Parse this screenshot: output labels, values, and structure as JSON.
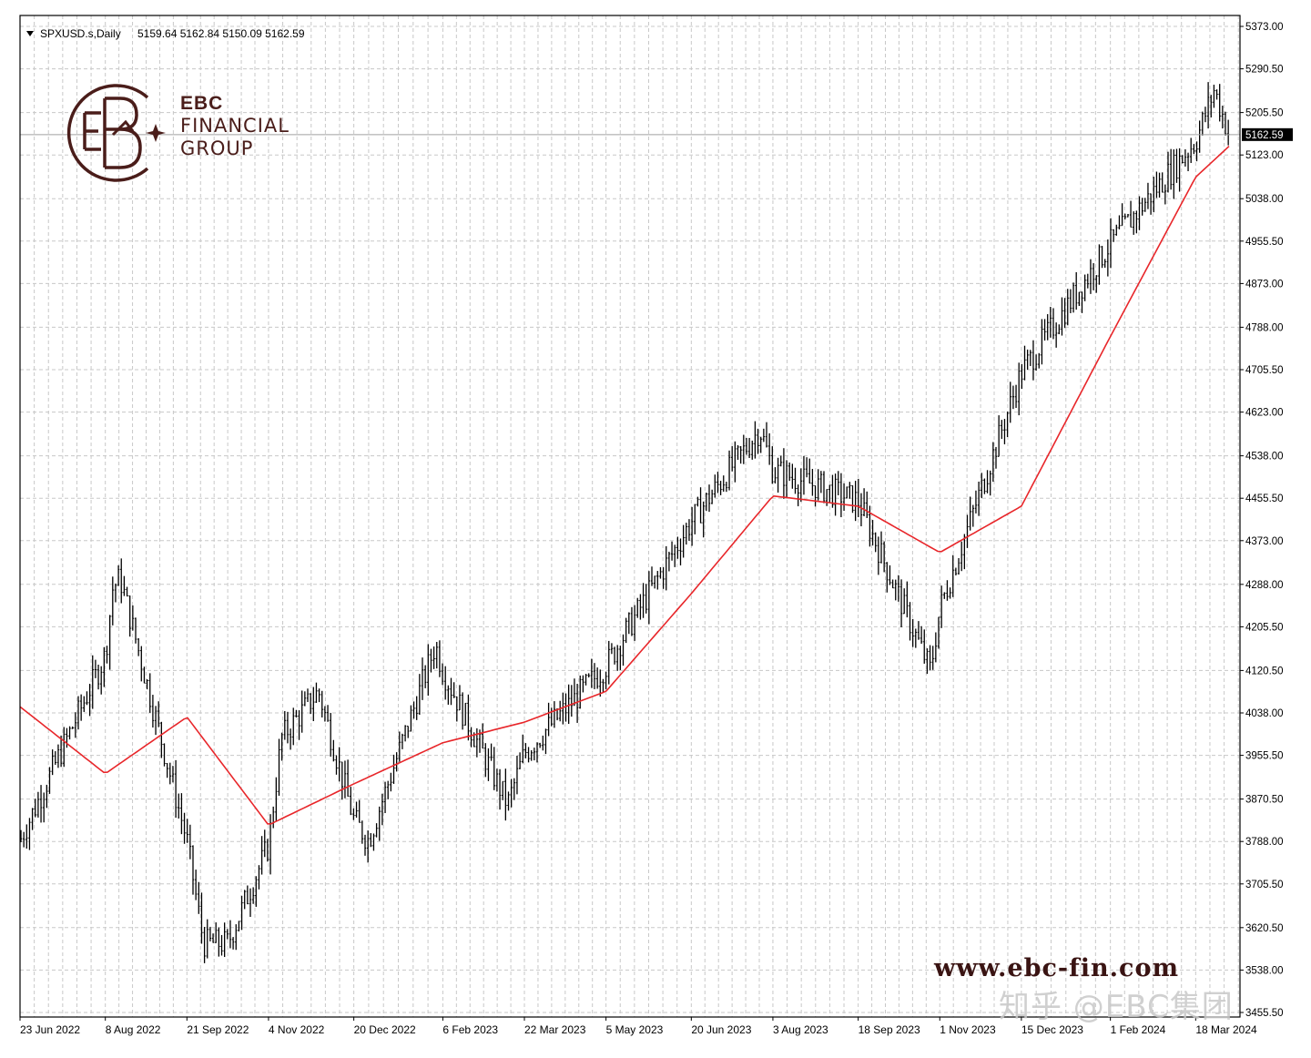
{
  "header": {
    "symbol_label": "SPXUSD.s,Daily",
    "ohlc": "5159.64 5162.84 5150.09 5162.59",
    "dropdown_icon": "triangle-down-icon"
  },
  "price_tag": {
    "value": "5162.59"
  },
  "logo": {
    "line1": "EBC",
    "line2": "FINANCIAL",
    "line3": "GROUP",
    "icon": "ebc-monogram-icon"
  },
  "watermark": {
    "url": "www.ebc-fin.com",
    "zhihu": "知乎 @EBC集团"
  },
  "colors": {
    "bars": "#000000",
    "ma_line": "#e8262a",
    "grid": "#c8c8c8",
    "frame": "#000000",
    "background": "#ffffff",
    "logo": "#4a1d1a"
  },
  "chart_data": {
    "type": "line",
    "title": "",
    "xlabel": "",
    "ylabel": "",
    "grid": true,
    "ylim": [
      3455.5,
      5373.0
    ],
    "y_ticks": [
      "5373.00",
      "5290.50",
      "5205.50",
      "5123.00",
      "5038.00",
      "4955.50",
      "4873.00",
      "4788.00",
      "4705.50",
      "4623.00",
      "4538.00",
      "4455.50",
      "4373.00",
      "4288.00",
      "4205.50",
      "4120.50",
      "4038.00",
      "3955.50",
      "3870.50",
      "3788.00",
      "3705.50",
      "3620.50",
      "3538.00",
      "3455.50"
    ],
    "x_ticks": [
      "23 Jun 2022",
      "8 Aug 2022",
      "21 Sep 2022",
      "4 Nov 2022",
      "20 Dec 2022",
      "6 Feb 2023",
      "22 Mar 2023",
      "5 May 2023",
      "20 Jun 2023",
      "3 Aug 2023",
      "18 Sep 2023",
      "1 Nov 2023",
      "15 Dec 2023",
      "1 Feb 2024",
      "18 Mar 2024"
    ],
    "series": [
      {
        "values": [
          [
            "23 Jun 2022",
            3790
          ],
          [
            "8 Aug 2022",
            4150
          ],
          [
            "12 Aug 2022",
            4280
          ],
          [
            "16 Aug 2022",
            4300
          ],
          [
            "21 Sep 2022",
            3790
          ],
          [
            "30 Sep 2022",
            3590
          ],
          [
            "13 Oct 2022",
            3590
          ],
          [
            "4 Nov 2022",
            3780
          ],
          [
            "11 Nov 2022",
            3990
          ],
          [
            "1 Dec 2022",
            4080
          ],
          [
            "20 Dec 2022",
            3830
          ],
          [
            "28 Dec 2022",
            3790
          ],
          [
            "2 Feb 2023",
            4170
          ],
          [
            "6 Feb 2023",
            4120
          ],
          [
            "13 Mar 2023",
            3860
          ],
          [
            "22 Mar 2023",
            3960
          ],
          [
            "5 May 2023",
            4130
          ],
          [
            "20 Jun 2023",
            4410
          ],
          [
            "3 Aug 2023",
            4510
          ],
          [
            "27 Jul 2023",
            4590
          ],
          [
            "18 Sep 2023",
            4450
          ],
          [
            "27 Oct 2023",
            4120
          ],
          [
            "1 Nov 2023",
            4240
          ],
          [
            "15 Dec 2023",
            4700
          ],
          [
            "1 Feb 2024",
            4950
          ],
          [
            "18 Mar 2024",
            5150
          ],
          [
            "28 Mar 2024",
            5250
          ],
          [
            "5 Apr 2024",
            5162.59
          ]
        ]
      },
      {
        "values": [
          [
            "23 Jun 2022",
            4050
          ],
          [
            "8 Aug 2022",
            3920
          ],
          [
            "21 Sep 2022",
            4030
          ],
          [
            "4 Nov 2022",
            3820
          ],
          [
            "20 Dec 2022",
            3900
          ],
          [
            "6 Feb 2023",
            3980
          ],
          [
            "22 Mar 2023",
            4020
          ],
          [
            "5 May 2023",
            4080
          ],
          [
            "20 Jun 2023",
            4270
          ],
          [
            "3 Aug 2023",
            4460
          ],
          [
            "18 Sep 2023",
            4440
          ],
          [
            "1 Nov 2023",
            4350
          ],
          [
            "15 Dec 2023",
            4440
          ],
          [
            "1 Feb 2024",
            4770
          ],
          [
            "18 Mar 2024",
            5080
          ],
          [
            "5 Apr 2024",
            5140
          ]
        ]
      }
    ],
    "last_close": 5162.59
  }
}
